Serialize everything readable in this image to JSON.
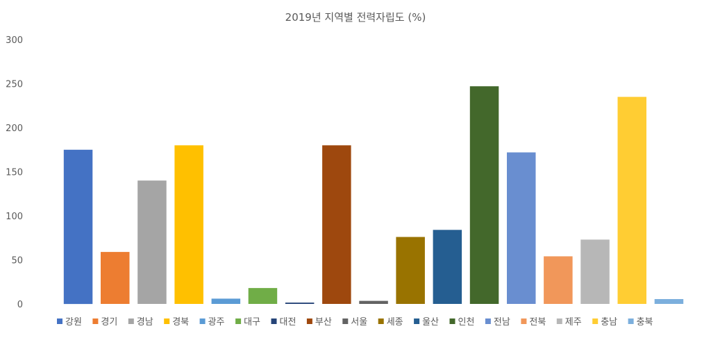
{
  "chart_data": {
    "type": "bar",
    "title": "2019년 지역별 전력자립도 (%)",
    "xlabel": "",
    "ylabel": "",
    "ylim": [
      0,
      300
    ],
    "yticks": [
      0,
      50,
      100,
      150,
      200,
      250,
      300
    ],
    "grid": false,
    "legend_position": "bottom",
    "categories": [
      "강원",
      "경기",
      "경남",
      "경북",
      "광주",
      "대구",
      "대전",
      "부산",
      "서울",
      "세종",
      "울산",
      "인천",
      "전남",
      "전북",
      "제주",
      "충남",
      "충북"
    ],
    "values": [
      175,
      59,
      140,
      180,
      6,
      18,
      1.5,
      180,
      3.5,
      76,
      84,
      247,
      172,
      54,
      73,
      235,
      5.5
    ],
    "colors": [
      "#4472C4",
      "#ED7D31",
      "#A5A5A5",
      "#FFC000",
      "#5B9BD5",
      "#70AD47",
      "#264478",
      "#9E480E",
      "#636363",
      "#997300",
      "#255E91",
      "#43682B",
      "#698ED0",
      "#F1975A",
      "#B7B7B7",
      "#FFCD33",
      "#7CAFDD"
    ]
  }
}
